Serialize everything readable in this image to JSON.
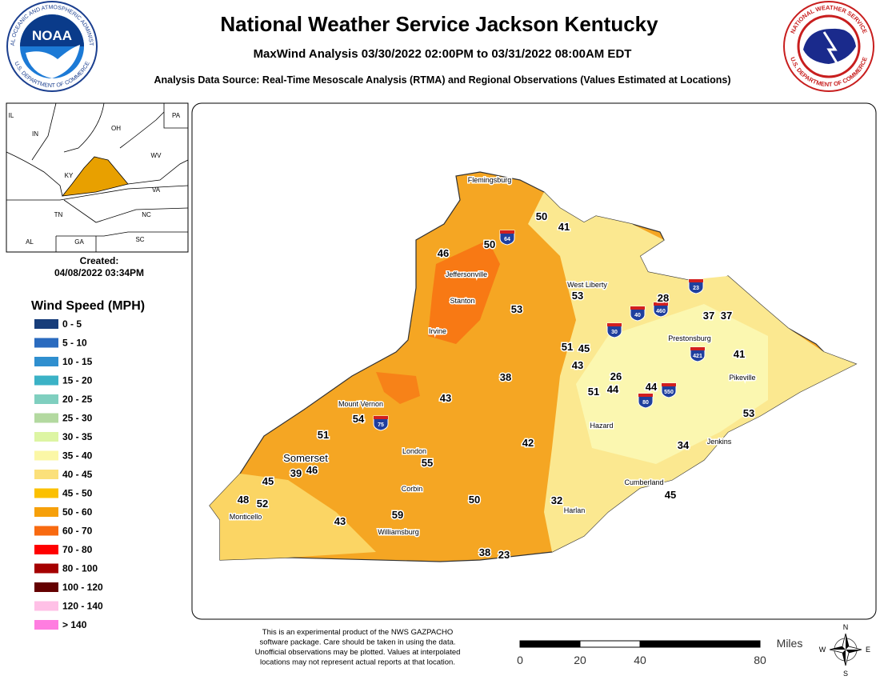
{
  "header": {
    "title": "National Weather Service Jackson Kentucky",
    "subtitle": "MaxWind Analysis 03/30/2022 02:00PM to 03/31/2022 08:00AM EDT",
    "source": "Analysis Data Source: Real-Time Mesoscale Analysis (RTMA) and Regional Observations (Values Estimated at Locations)"
  },
  "logos": {
    "noaa": {
      "center": "NOAA",
      "top": "NATIONAL OCEANIC AND ATMOSPHERIC ADMINISTRATION",
      "bottom": "U.S. DEPARTMENT OF COMMERCE"
    },
    "nws": {
      "top": "NATIONAL WEATHER SERVICE",
      "bottom": "U.S. DEPARTMENT OF COMMERCE"
    }
  },
  "inset": {
    "states": [
      "IL",
      "IN",
      "OH",
      "PA",
      "WV",
      "KY",
      "VA",
      "TN",
      "NC",
      "AL",
      "GA",
      "SC"
    ]
  },
  "created": {
    "label": "Created:",
    "date": "04/08/2022 03:34PM"
  },
  "legend": {
    "title": "Wind Speed (MPH)",
    "entries": [
      {
        "label": "0 - 5",
        "color": "#173d7a"
      },
      {
        "label": "5 - 10",
        "color": "#2a6bbf"
      },
      {
        "label": "10 - 15",
        "color": "#2f8fcf"
      },
      {
        "label": "15 - 20",
        "color": "#3bb2c6"
      },
      {
        "label": "20 - 25",
        "color": "#7fcfbf"
      },
      {
        "label": "25 - 30",
        "color": "#b3d9a0"
      },
      {
        "label": "30 - 35",
        "color": "#ddf5a3"
      },
      {
        "label": "35 - 40",
        "color": "#fbf7a6"
      },
      {
        "label": "40 - 45",
        "color": "#fbe07a"
      },
      {
        "label": "45 - 50",
        "color": "#fbc000"
      },
      {
        "label": "50 - 60",
        "color": "#f6a00a"
      },
      {
        "label": "60 - 70",
        "color": "#f86a10"
      },
      {
        "label": "70 - 80",
        "color": "#ff0000"
      },
      {
        "label": "80 - 100",
        "color": "#a50000"
      },
      {
        "label": "100 - 120",
        "color": "#640000"
      },
      {
        "label": "120 - 140",
        "color": "#ffc0e6"
      },
      {
        "label": "> 140",
        "color": "#ff7de0"
      }
    ]
  },
  "map": {
    "cities": [
      "Flemingsburg",
      "Jeffersonville",
      "West Liberty",
      "Stanton",
      "Irvine",
      "Prestonsburg",
      "Pikeville",
      "Mount Vernon",
      "Hazard",
      "Jenkins",
      "London",
      "Somerset",
      "Corbin",
      "Cumberland",
      "Harlan",
      "Monticello",
      "Williamsburg"
    ],
    "interstates": [
      "64",
      "23",
      "40",
      "460",
      "30",
      "421",
      "550",
      "80",
      "75"
    ],
    "observations": [
      50,
      41,
      50,
      46,
      53,
      53,
      28,
      37,
      37,
      51,
      45,
      43,
      41,
      38,
      26,
      44,
      51,
      44,
      43,
      54,
      53,
      51,
      42,
      34,
      55,
      39,
      46,
      45,
      48,
      52,
      50,
      32,
      45,
      59,
      43,
      38,
      23
    ]
  },
  "footer": {
    "disclaimer": [
      "This is an experimental product of the NWS GAZPACHO",
      "software package. Care should be taken in using the data.",
      "Unofficial observations may be plotted. Values at interpolated",
      "locations may not represent actual reports at that location."
    ]
  },
  "scale": {
    "unit": "Miles",
    "labels": [
      0,
      20,
      40,
      80
    ]
  },
  "compass": {
    "n": "N",
    "e": "E",
    "s": "S",
    "w": "W"
  }
}
